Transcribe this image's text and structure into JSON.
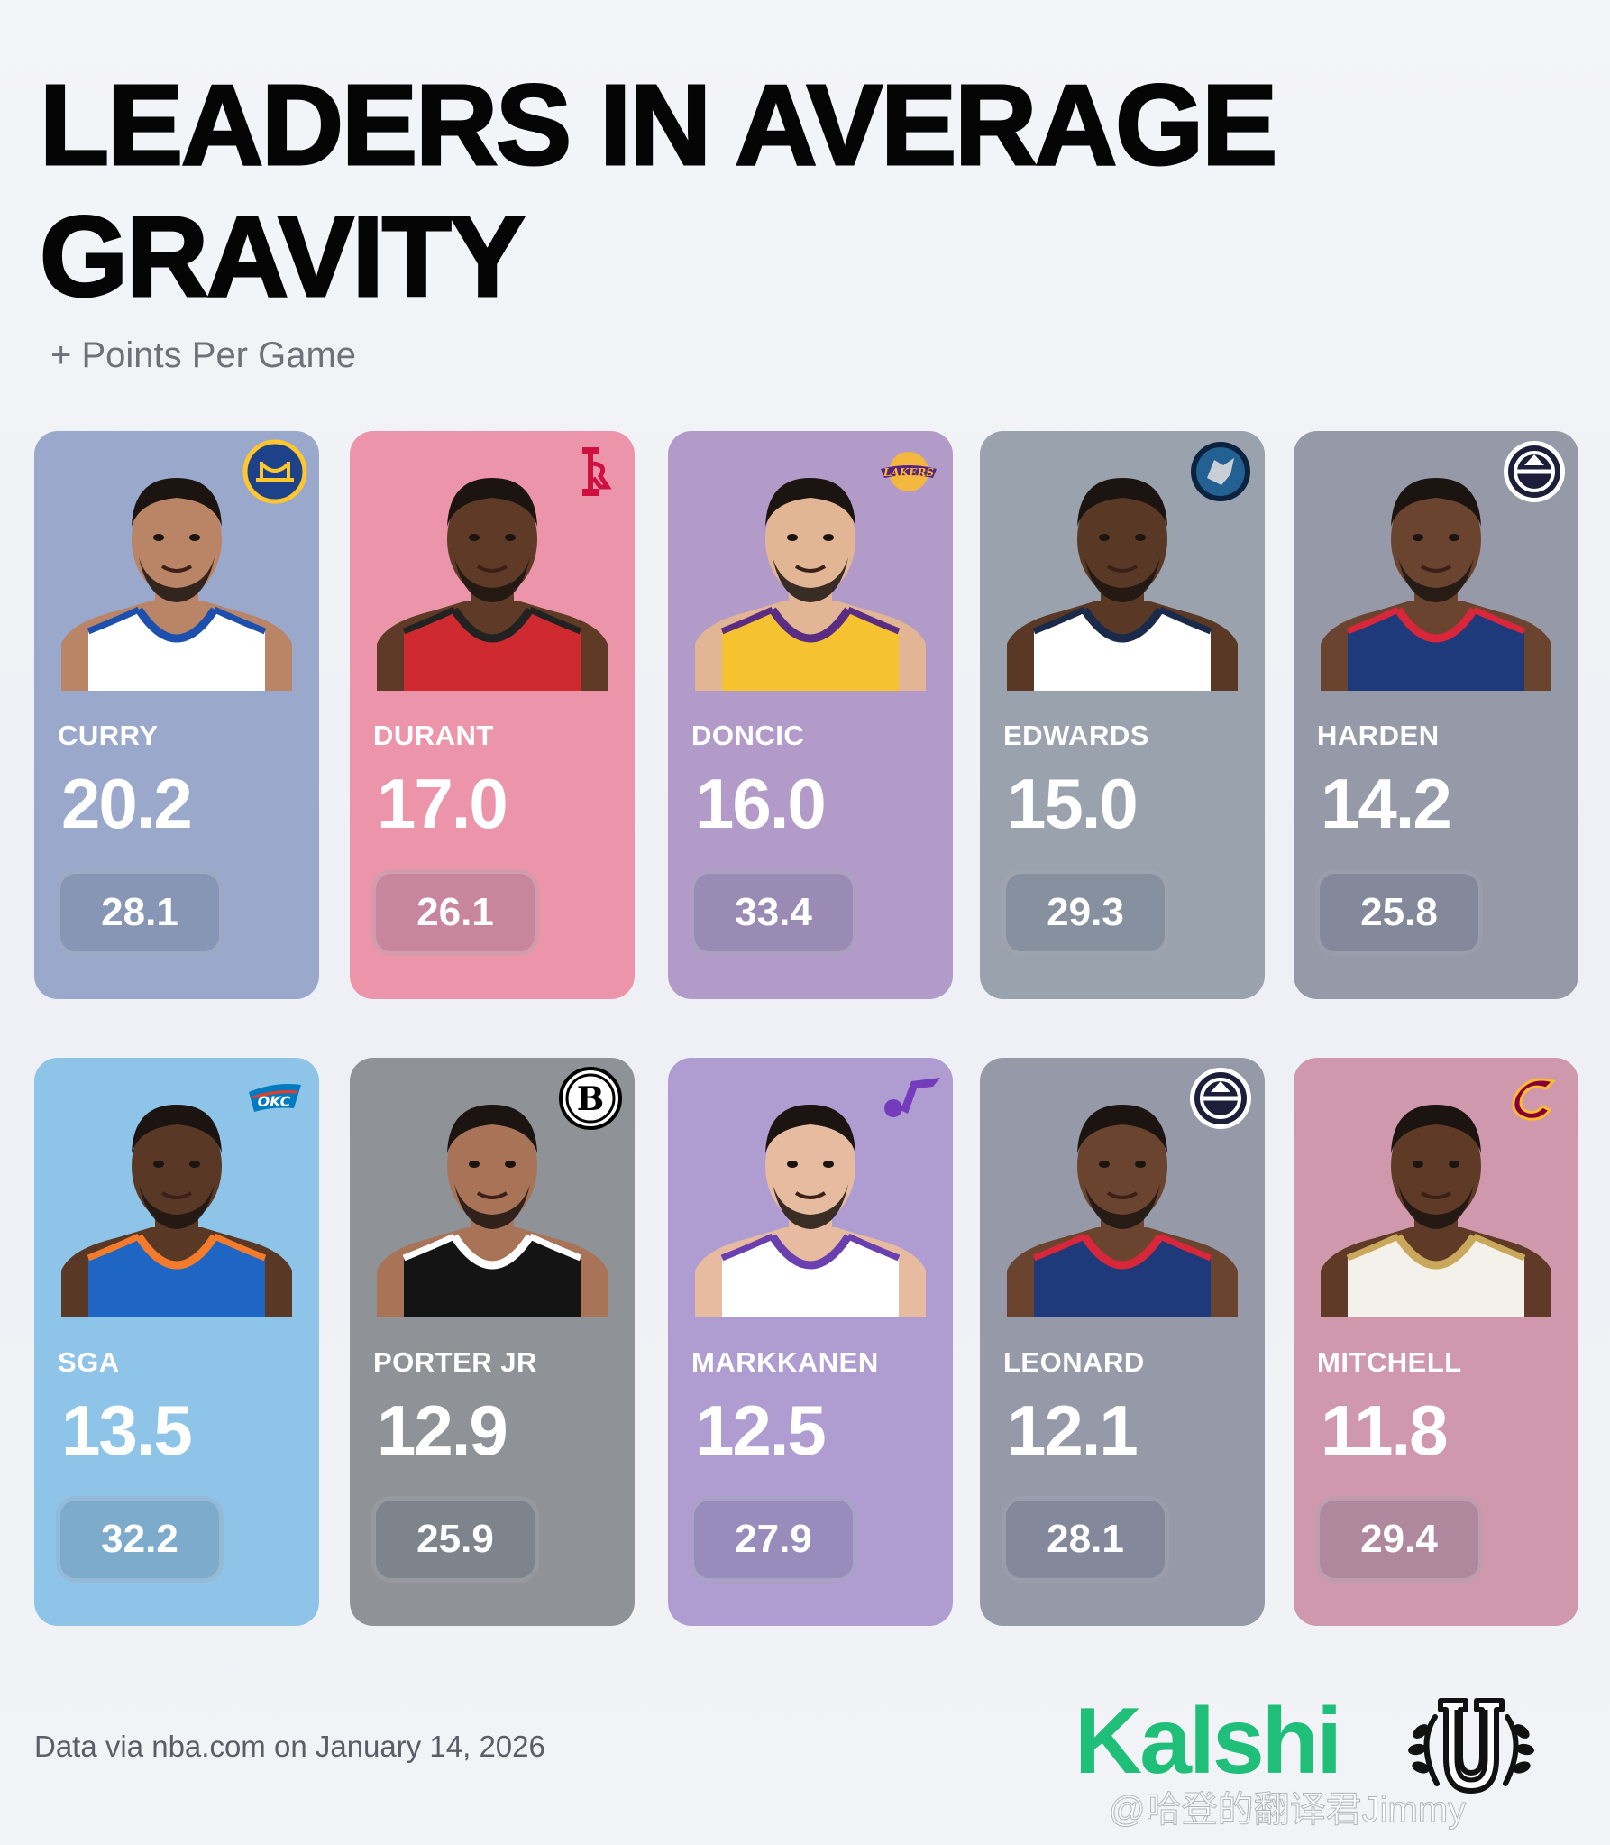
{
  "title": "LEADERS IN AVERAGE GRAVITY",
  "subtitle": "+ Points Per Game",
  "players": [
    {
      "name": "CURRY",
      "gravity": "20.2",
      "ppg": "28.1",
      "team_logo": "warriors-logo-icon",
      "card_color": "#9aa9cb",
      "jersey_color": "#ffffff",
      "jersey_trim": "#1d4fae",
      "skin": "#b98566"
    },
    {
      "name": "DURANT",
      "gravity": "17.0",
      "ppg": "26.1",
      "team_logo": "rockets-logo-icon",
      "card_color": "#ec95aa",
      "jersey_color": "#cf2a2f",
      "jersey_trim": "#222222",
      "skin": "#5e3a27"
    },
    {
      "name": "DONCIC",
      "gravity": "16.0",
      "ppg": "33.4",
      "team_logo": "lakers-logo-icon",
      "card_color": "#b39bc9",
      "jersey_color": "#f6c330",
      "jersey_trim": "#5a2c82",
      "skin": "#e2b595"
    },
    {
      "name": "EDWARDS",
      "gravity": "15.0",
      "ppg": "29.3",
      "team_logo": "timberwolves-logo-icon",
      "card_color": "#9aa2ae",
      "jersey_color": "#ffffff",
      "jersey_trim": "#1a2a4a",
      "skin": "#5a3826"
    },
    {
      "name": "HARDEN",
      "gravity": "14.2",
      "ppg": "25.8",
      "team_logo": "clippers-logo-icon",
      "card_color": "#9599a8",
      "jersey_color": "#1e3a7a",
      "jersey_trim": "#d8263a",
      "skin": "#6b4430"
    },
    {
      "name": "SGA",
      "gravity": "13.5",
      "ppg": "32.2",
      "team_logo": "thunder-logo-icon",
      "card_color": "#8ec4e8",
      "jersey_color": "#1f66c4",
      "jersey_trim": "#f47b2a",
      "skin": "#5a3826"
    },
    {
      "name": "PORTER JR",
      "gravity": "12.9",
      "ppg": "25.9",
      "team_logo": "nets-logo-icon",
      "card_color": "#8f9296",
      "jersey_color": "#141414",
      "jersey_trim": "#ffffff",
      "skin": "#a87356"
    },
    {
      "name": "MARKKANEN",
      "gravity": "12.5",
      "ppg": "27.9",
      "team_logo": "jazz-logo-icon",
      "card_color": "#af9dd2",
      "jersey_color": "#ffffff",
      "jersey_trim": "#6a3fb0",
      "skin": "#e6bba0"
    },
    {
      "name": "LEONARD",
      "gravity": "12.1",
      "ppg": "28.1",
      "team_logo": "clippers-logo-icon",
      "card_color": "#9599a8",
      "jersey_color": "#1e3a7a",
      "jersey_trim": "#d8263a",
      "skin": "#6b4430"
    },
    {
      "name": "MITCHELL",
      "gravity": "11.8",
      "ppg": "29.4",
      "team_logo": "cavaliers-logo-icon",
      "card_color": "#cf98ad",
      "jersey_color": "#f4f1ea",
      "jersey_trim": "#c9a85c",
      "skin": "#5e3a27"
    }
  ],
  "footer": {
    "source": "Data via nba.com on January 14, 2026",
    "brand": "Kalshi",
    "watermark": "@哈登的翻译君Jimmy"
  }
}
